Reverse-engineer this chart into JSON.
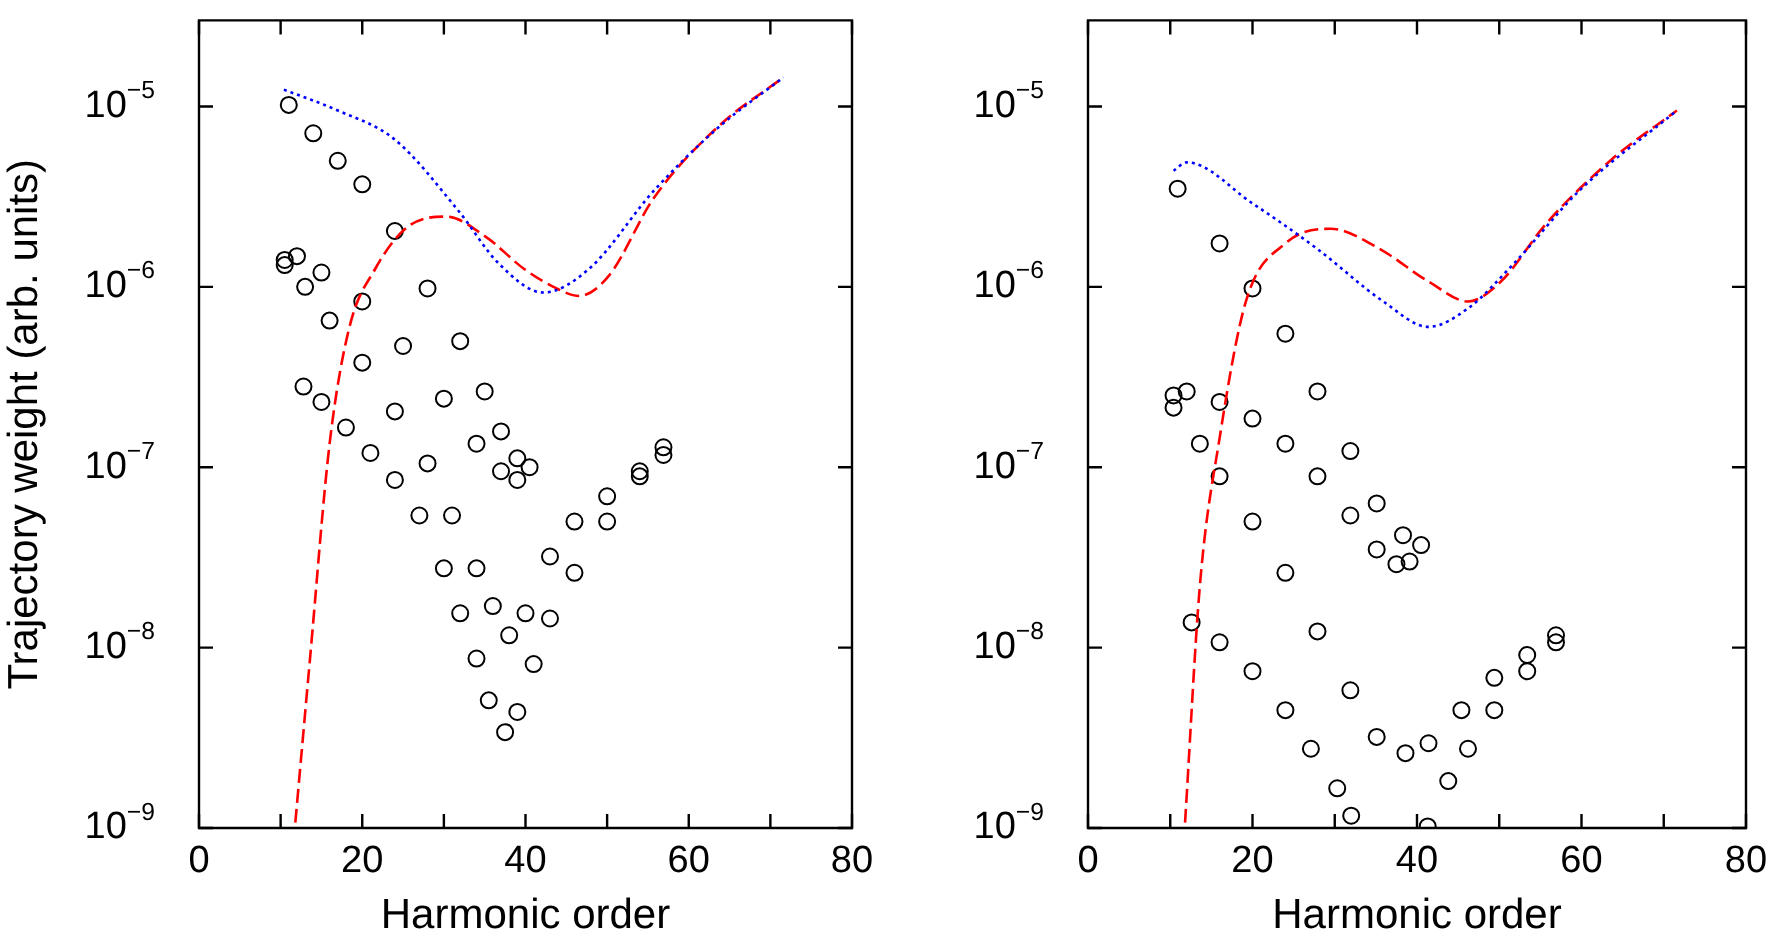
{
  "chart_data": [
    {
      "type": "line",
      "xlabel": "Harmonic order",
      "ylabel": "Trajectory weight (arb. units)",
      "log": "y",
      "grid": false,
      "legend": false,
      "xlim": [
        0,
        80
      ],
      "xticks": [
        0,
        {
          "value": 10,
          "label": null
        },
        20,
        {
          "value": 30,
          "label": null
        },
        40,
        {
          "value": 50,
          "label": null
        },
        60,
        {
          "value": 70,
          "label": null
        },
        80
      ],
      "ylim": [
        1e-09,
        3e-05
      ],
      "yticks": [
        {
          "value": 1e-09,
          "label": "10$^{−9}$"
        },
        {
          "value": 1e-08,
          "label": "10$^{−8}$"
        },
        {
          "value": 1e-07,
          "label": "10$^{−7}$"
        },
        {
          "value": 1e-06,
          "label": "10$^{−6}$"
        },
        {
          "value": 1e-05,
          "label": "10$^{−5}$"
        }
      ],
      "series": [
        {
          "line_style": "dotted",
          "marker": "none",
          "color": "#0000ff",
          "x": [
            10.4,
            17,
            23.9,
            31.9,
            36.7,
            42.2,
            47.8,
            55.7,
            63.7,
            71.6
          ],
          "values": [
            1.24e-05,
            9.5e-06,
            6.6e-06,
            2.6e-06,
            1.35e-06,
            9.3e-07,
            1.26e-06,
            3.4e-06,
            7.7e-06,
            1.45e-05
          ]
        },
        {
          "line_style": "dashed",
          "marker": "none",
          "color": "#ff0000",
          "x": [
            11.8,
            13.6,
            16,
            18.4,
            21.6,
            25.5,
            30.3,
            35.1,
            39.8,
            43.8,
            46.6,
            50.2,
            55.7,
            63.7,
            71.6
          ],
          "values": [
            1.07e-09,
            8.7e-09,
            1.35e-07,
            5.9e-07,
            1.26e-06,
            2.14e-06,
            2.45e-06,
            1.9e-06,
            1.26e-06,
            9.8e-07,
            8.9e-07,
            1.15e-06,
            3.1e-06,
            7.8e-06,
            1.45e-05
          ]
        },
        {
          "type": "scatter",
          "marker": "circle",
          "color": "#000000",
          "x": [
            11,
            14,
            17,
            20,
            24,
            28,
            32,
            35,
            37,
            39,
            40.5,
            39,
            37,
            34,
            30,
            25,
            20,
            15,
            12,
            10.5
          ],
          "values": [
            1.02e-05,
            7.1e-06,
            5e-06,
            3.7e-06,
            2.04e-06,
            9.8e-07,
            5e-07,
            2.63e-07,
            1.58e-07,
            1.12e-07,
            1e-07,
            8.5e-08,
            9.5e-08,
            1.35e-07,
            2.4e-07,
            4.7e-07,
            8.3e-07,
            1.2e-06,
            1.48e-06,
            1.41e-06
          ]
        },
        {
          "type": "scatter",
          "marker": "circle",
          "color": "#000000",
          "x": [
            10.5,
            13,
            16,
            20,
            24,
            28,
            31,
            34,
            36,
            38,
            40,
            43,
            46,
            50,
            54,
            56.9
          ],
          "values": [
            1.32e-06,
            1e-06,
            6.5e-07,
            3.8e-07,
            2.04e-07,
            1.05e-07,
            5.4e-08,
            2.75e-08,
            1.7e-08,
            1.17e-08,
            1.55e-08,
            3.2e-08,
            5e-08,
            6.9e-08,
            9.5e-08,
            1.29e-07
          ]
        },
        {
          "type": "scatter",
          "marker": "circle",
          "color": "#000000",
          "x": [
            12.8,
            15,
            18,
            21,
            24,
            27,
            30,
            32,
            34,
            35.5,
            37.5,
            39,
            41,
            43,
            46,
            50,
            54,
            56.9
          ],
          "values": [
            2.8e-07,
            2.3e-07,
            1.66e-07,
            1.2e-07,
            8.5e-08,
            5.4e-08,
            2.75e-08,
            1.55e-08,
            8.7e-09,
            5.1e-09,
            3.4e-09,
            4.4e-09,
            8.1e-09,
            1.45e-08,
            2.6e-08,
            5e-08,
            8.9e-08,
            1.17e-07
          ]
        }
      ]
    },
    {
      "type": "line",
      "xlabel": "Harmonic order",
      "log": "y",
      "grid": false,
      "legend": false,
      "xlim": [
        0,
        80
      ],
      "xticks": [
        0,
        {
          "value": 10,
          "label": null
        },
        20,
        {
          "value": 30,
          "label": null
        },
        40,
        {
          "value": 50,
          "label": null
        },
        60,
        {
          "value": 70,
          "label": null
        },
        80
      ],
      "ylim": [
        1e-09,
        3e-05
      ],
      "yticks": [
        {
          "value": 1e-09,
          "label": "10$^{−9}$"
        },
        {
          "value": 1e-08,
          "label": "10$^{−8}$"
        },
        {
          "value": 1e-07,
          "label": "10$^{−7}$"
        },
        {
          "value": 1e-06,
          "label": "10$^{−6}$"
        },
        {
          "value": 1e-05,
          "label": "10$^{−5}$"
        }
      ],
      "series": [
        {
          "line_style": "dotted",
          "marker": "none",
          "color": "#0000ff",
          "x": [
            10.4,
            12,
            20,
            27.9,
            35.9,
            41.4,
            46.2,
            51.8,
            59.7,
            71.6
          ],
          "values": [
            4.4e-06,
            4.9e-06,
            2.9e-06,
            1.62e-06,
            8.3e-07,
            6e-07,
            7.6e-07,
            1.35e-06,
            3.4e-06,
            9.5e-06
          ]
        },
        {
          "line_style": "dashed",
          "marker": "none",
          "color": "#ff0000",
          "x": [
            11.8,
            13.6,
            16,
            19.2,
            24,
            29.5,
            35.1,
            41.4,
            46.2,
            50.2,
            55.7,
            63.7,
            71.6
          ],
          "values": [
            1.07e-09,
            2.2e-08,
            1.45e-07,
            8.3e-07,
            1.74e-06,
            2.1e-06,
            1.66e-06,
            1.07e-06,
            8.3e-07,
            1.07e-06,
            2.24e-06,
            5.1e-06,
            9.5e-06
          ]
        },
        {
          "type": "scatter",
          "marker": "circle",
          "color": "#000000",
          "x": [
            10.9,
            16,
            20,
            24,
            27.9,
            31.9,
            35.1,
            38.3,
            40.5,
            39.1,
            37.5,
            35.1,
            31.9,
            27.9,
            24,
            20,
            16,
            12,
            10.4
          ],
          "values": [
            3.5e-06,
            1.74e-06,
            9.8e-07,
            5.5e-07,
            2.63e-07,
            1.23e-07,
            6.3e-08,
            4.2e-08,
            3.7e-08,
            3e-08,
            2.9e-08,
            3.5e-08,
            5.4e-08,
            8.9e-08,
            1.35e-07,
            1.86e-07,
            2.3e-07,
            2.63e-07,
            2.5e-07
          ]
        },
        {
          "type": "scatter",
          "marker": "circle",
          "color": "#000000",
          "x": [
            10.4,
            13.6,
            16,
            20,
            24,
            27.9,
            31.9,
            35.1,
            38.6,
            41.4,
            45.4,
            49.4,
            53.4,
            56.9
          ],
          "values": [
            2.14e-07,
            1.35e-07,
            8.9e-08,
            5e-08,
            2.6e-08,
            1.23e-08,
            5.8e-09,
            3.2e-09,
            2.6e-09,
            2.95e-09,
            4.5e-09,
            6.8e-09,
            9.1e-09,
            1.17e-08
          ]
        },
        {
          "type": "scatter",
          "marker": "circle",
          "color": "#000000",
          "x": [
            12.6,
            16,
            20,
            24,
            27.1,
            30.3,
            32,
            41.3,
            43.8,
            46.2,
            49.4,
            53.4,
            56.9
          ],
          "values": [
            1.38e-08,
            1.07e-08,
            7.4e-09,
            4.5e-09,
            2.75e-09,
            1.66e-09,
            1.17e-09,
            1.02e-09,
            1.82e-09,
            2.75e-09,
            4.5e-09,
            7.4e-09,
            1.07e-08
          ]
        }
      ]
    }
  ]
}
